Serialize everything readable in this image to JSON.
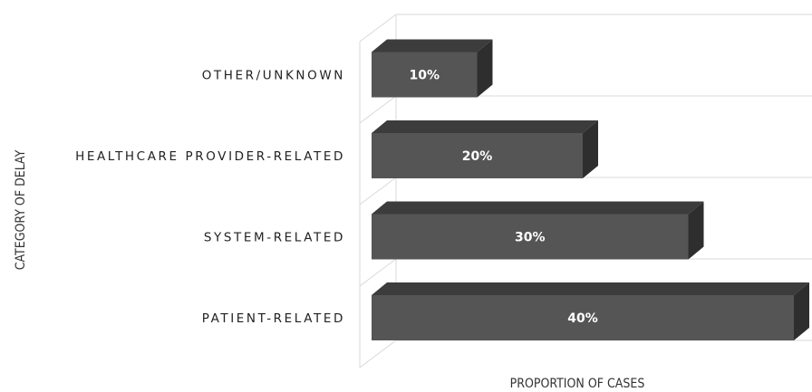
{
  "chart_data": {
    "type": "bar",
    "orientation": "horizontal",
    "three_d": true,
    "categories": [
      "PATIENT-RELATED",
      "SYSTEM-RELATED",
      "HEALTHCARE PROVIDER-RELATED",
      "OTHER/UNKNOWN"
    ],
    "values": [
      40,
      30,
      20,
      10
    ],
    "data_labels": [
      "40%",
      "30%",
      "20%",
      "10%"
    ],
    "xlabel": "PROPORTION OF CASES",
    "ylabel": "CATEGORY OF DELAY",
    "xlim": [
      0,
      40
    ],
    "grid": true,
    "legend": "none",
    "colors": {
      "bar_front": "#555555",
      "bar_top": "#3c3c3c",
      "bar_side": "#2e2e2e",
      "grid": "#d9d9d9"
    }
  }
}
